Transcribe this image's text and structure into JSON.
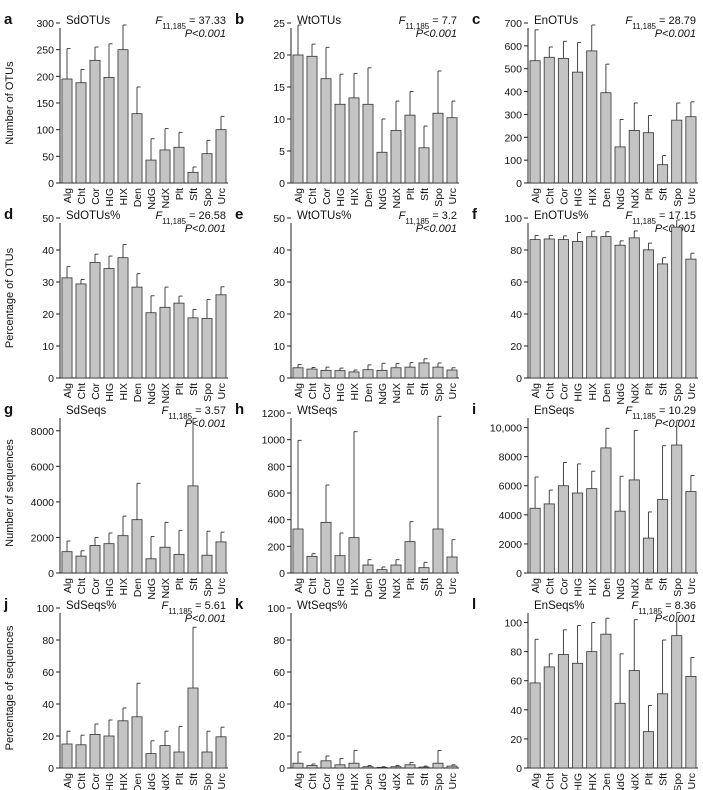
{
  "chart_data": [
    {
      "type": "bar",
      "panel": "a",
      "title": "SdOTUs",
      "stat_f": "11,185",
      "stat_value": "= 37.33",
      "stat_p": "P<0.001",
      "ylabel": "Number of OTUs",
      "ylim": [
        0,
        300
      ],
      "yticks": [
        "0",
        "50",
        "100",
        "150",
        "200",
        "250",
        "300"
      ],
      "categories": [
        "Alg",
        "Cht",
        "Cor",
        "HIG",
        "HIX",
        "Den",
        "NdG",
        "NdX",
        "Plt",
        "Sft",
        "Spo",
        "Urc"
      ],
      "values": [
        195,
        188,
        230,
        198,
        250,
        130,
        43,
        62,
        67,
        20,
        55,
        100
      ],
      "error": [
        57,
        25,
        25,
        63,
        65,
        50,
        40,
        40,
        28,
        10,
        25,
        25
      ]
    },
    {
      "type": "bar",
      "panel": "b",
      "title": "WtOTUs",
      "stat_f": "11,185",
      "stat_value": "= 7.7",
      "stat_p": "P<0.001",
      "ylabel": "",
      "ylim": [
        0,
        25
      ],
      "yticks": [
        "0",
        "5",
        "10",
        "15",
        "20",
        "25"
      ],
      "categories": [
        "Alg",
        "Cht",
        "Cor",
        "HIG",
        "HIX",
        "Den",
        "NdG",
        "NdX",
        "Plt",
        "Sft",
        "Spo",
        "Urc"
      ],
      "values": [
        20,
        19.8,
        16.3,
        12.3,
        13.3,
        12.3,
        4.8,
        8.2,
        10.6,
        5.5,
        10.9,
        10.2
      ],
      "error": [
        6.9,
        1.9,
        4.9,
        4.7,
        3.8,
        5.7,
        5.2,
        4.6,
        3.7,
        3.4,
        6.6,
        2.6
      ]
    },
    {
      "type": "bar",
      "panel": "c",
      "title": "EnOTUs",
      "stat_f": "11,185",
      "stat_value": "= 28.79",
      "stat_p": "P<0.001",
      "ylabel": "",
      "ylim": [
        0,
        700
      ],
      "yticks": [
        "0",
        "100",
        "200",
        "300",
        "400",
        "500",
        "600",
        "700"
      ],
      "categories": [
        "Alg",
        "Cht",
        "Cor",
        "HIG",
        "HIX",
        "Den",
        "NdG",
        "NdX",
        "Plt",
        "Sft",
        "Spo",
        "Urc"
      ],
      "values": [
        535,
        550,
        545,
        485,
        578,
        395,
        158,
        230,
        220,
        80,
        275,
        290
      ],
      "error": [
        135,
        45,
        75,
        130,
        122,
        125,
        120,
        120,
        75,
        40,
        75,
        65
      ]
    },
    {
      "type": "bar",
      "panel": "d",
      "title": "SdOTUs%",
      "stat_f": "11,185",
      "stat_value": "= 26.58",
      "stat_p": "P<0.001",
      "ylabel": "Percentage of OTUs",
      "ylim": [
        0,
        50
      ],
      "yticks": [
        "0",
        "10",
        "20",
        "30",
        "40",
        "50"
      ],
      "categories": [
        "Alg",
        "Cht",
        "Cor",
        "HIG",
        "HIX",
        "Den",
        "NdG",
        "NdX",
        "Plt",
        "Sft",
        "Spo",
        "Urc"
      ],
      "values": [
        31.3,
        29.4,
        36.1,
        34.2,
        37.6,
        28.4,
        20.4,
        22.1,
        23.4,
        18.8,
        18.6,
        26
      ],
      "error": [
        3.5,
        1.4,
        2.6,
        3.9,
        4.1,
        4.2,
        5.3,
        6.3,
        2.2,
        2.6,
        5.9,
        2.5
      ]
    },
    {
      "type": "bar",
      "panel": "e",
      "title": "WtOTUs%",
      "stat_f": "11,185",
      "stat_value": "= 3.2",
      "stat_p": "P<0.001",
      "ylabel": "",
      "ylim": [
        0,
        50
      ],
      "yticks": [
        "0",
        "10",
        "20",
        "30",
        "40",
        "50"
      ],
      "categories": [
        "Alg",
        "Cht",
        "Cor",
        "HIG",
        "HIX",
        "Den",
        "NdG",
        "NdX",
        "Plt",
        "Sft",
        "Spo",
        "Urc"
      ],
      "values": [
        3.2,
        2.8,
        2.4,
        2.3,
        1.9,
        2.6,
        2.4,
        3.2,
        3.4,
        4.7,
        3.4,
        2.5
      ],
      "error": [
        1,
        0.5,
        1,
        0.8,
        0.6,
        1.5,
        2.2,
        1.3,
        1.4,
        1.3,
        1.3,
        0.7
      ]
    },
    {
      "type": "bar",
      "panel": "f",
      "title": "EnOTUs%",
      "stat_f": "11,185",
      "stat_value": "= 17.15",
      "stat_p": "P<0.001",
      "ylabel": "",
      "ylim": [
        0,
        100
      ],
      "yticks": [
        "0",
        "20",
        "40",
        "60",
        "80",
        "100"
      ],
      "categories": [
        "Alg",
        "Cht",
        "Cor",
        "HIG",
        "HIX",
        "Den",
        "NdG",
        "NdX",
        "Plt",
        "Sft",
        "Spo",
        "Urc"
      ],
      "values": [
        86.5,
        86.9,
        86.5,
        85.3,
        88.3,
        88.4,
        83,
        87.6,
        80.1,
        71.3,
        94.3,
        74.3
      ],
      "error": [
        2.6,
        2.2,
        2.3,
        5.6,
        3.5,
        3,
        2.7,
        4.3,
        4.2,
        3.9,
        5.8,
        3.7
      ]
    },
    {
      "type": "bar",
      "panel": "g",
      "title": "SdSeqs",
      "stat_f": "11,185",
      "stat_value": "= 3.57",
      "stat_p": "P<0.001",
      "ylabel": "Number of sequences",
      "ylim": [
        0,
        9000
      ],
      "yticks": [
        "0",
        "2000",
        "4000",
        "6000",
        "8000"
      ],
      "categories": [
        "Alg",
        "Cht",
        "Cor",
        "HIG",
        "HIX",
        "Den",
        "NdG",
        "NdX",
        "Plt",
        "Sft",
        "Spo",
        "Urc"
      ],
      "values": [
        1200,
        950,
        1550,
        1650,
        2100,
        3000,
        800,
        1450,
        1050,
        4900,
        1000,
        1750
      ],
      "error": [
        600,
        300,
        450,
        600,
        1100,
        2050,
        1250,
        1400,
        1350,
        3800,
        1350,
        550
      ]
    },
    {
      "type": "bar",
      "panel": "h",
      "title": "WtSeqs",
      "stat_f": "",
      "stat_value": "",
      "stat_p": "",
      "ylabel": "",
      "ylim": [
        0,
        1200
      ],
      "yticks": [
        "0",
        "200",
        "400",
        "600",
        "800",
        "1000",
        "1200"
      ],
      "categories": [
        "Alg",
        "Cht",
        "Cor",
        "HIG",
        "HIX",
        "Den",
        "NdG",
        "NdX",
        "Plt",
        "Sft",
        "Spo",
        "Urc"
      ],
      "values": [
        330,
        125,
        380,
        130,
        265,
        60,
        25,
        60,
        235,
        40,
        330,
        120
      ],
      "error": [
        665,
        20,
        280,
        170,
        795,
        40,
        20,
        40,
        150,
        40,
        845,
        130
      ]
    },
    {
      "type": "bar",
      "panel": "i",
      "title": "EnSeqs",
      "stat_f": "11,185",
      "stat_value": "= 10.29",
      "stat_p": "P<0.001",
      "ylabel": "",
      "ylim": [
        0,
        11000
      ],
      "yticks": [
        "0",
        "2000",
        "4000",
        "6000",
        "8000",
        "10,000"
      ],
      "categories": [
        "Alg",
        "Cht",
        "Cor",
        "HIG",
        "HIX",
        "Den",
        "NdG",
        "NdX",
        "Plt",
        "Sft",
        "Spo",
        "Urc"
      ],
      "values": [
        4450,
        4750,
        6000,
        5500,
        5800,
        8600,
        4250,
        6400,
        2400,
        5050,
        8800,
        5600
      ],
      "error": [
        2150,
        950,
        1600,
        2000,
        1200,
        1350,
        2400,
        3400,
        1800,
        3700,
        1700,
        1100
      ]
    },
    {
      "type": "bar",
      "panel": "j",
      "title": "SdSeqs%",
      "stat_f": "11,185",
      "stat_value": "= 5.61",
      "stat_p": "P<0.001",
      "ylabel": "Percentage of sequences",
      "ylim": [
        0,
        100
      ],
      "yticks": [
        "0",
        "20",
        "40",
        "60",
        "80",
        "100"
      ],
      "categories": [
        "Alg",
        "Cht",
        "Cor",
        "HIG",
        "HIX",
        "Den",
        "NdG",
        "NdX",
        "Plt",
        "Sft",
        "Spo",
        "Urc"
      ],
      "values": [
        15,
        14.5,
        21,
        20,
        29.5,
        32,
        9,
        14,
        10,
        50,
        10,
        19.5
      ],
      "error": [
        8,
        6,
        6.5,
        10,
        8,
        21,
        8,
        9,
        16,
        38,
        13,
        6
      ]
    },
    {
      "type": "bar",
      "panel": "k",
      "title": "WtSeqs%",
      "stat_f": "",
      "stat_value": "",
      "stat_p": "",
      "ylabel": "",
      "ylim": [
        0,
        100
      ],
      "yticks": [
        "0",
        "20",
        "40",
        "60",
        "80",
        "100"
      ],
      "categories": [
        "Alg",
        "Cht",
        "Cor",
        "HIG",
        "HIX",
        "Den",
        "NdG",
        "NdX",
        "Plt",
        "Sft",
        "Spo",
        "Urc"
      ],
      "values": [
        3,
        1.5,
        4.5,
        2,
        3,
        0.8,
        0.4,
        0.8,
        2,
        0.6,
        3,
        1.2
      ],
      "error": [
        7,
        1,
        3,
        4,
        8,
        0.8,
        0.4,
        0.8,
        1.5,
        0.6,
        8,
        0.8
      ]
    },
    {
      "type": "bar",
      "panel": "l",
      "title": "EnSeqs%",
      "stat_f": "11,185",
      "stat_value": "= 8.36",
      "stat_p": "P<0.001",
      "ylabel": "",
      "ylim": [
        0,
        110
      ],
      "yticks": [
        "0",
        "20",
        "40",
        "60",
        "80",
        "100"
      ],
      "categories": [
        "Alg",
        "Cht",
        "Cor",
        "HIG",
        "HIX",
        "Den",
        "NdG",
        "NdX",
        "Plt",
        "Sft",
        "Spo",
        "Urc"
      ],
      "values": [
        58.5,
        69.5,
        78,
        72,
        80,
        92,
        44.5,
        67,
        25,
        51,
        91,
        63
      ],
      "error": [
        30,
        9,
        17,
        26,
        20,
        11,
        34,
        35,
        18,
        37,
        16,
        13
      ]
    }
  ]
}
